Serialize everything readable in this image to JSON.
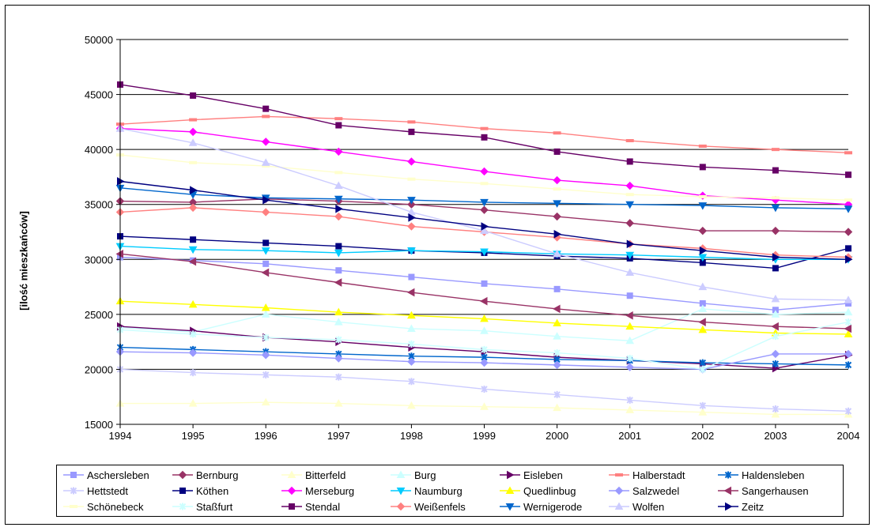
{
  "chart_data": {
    "type": "line",
    "title": "",
    "xlabel": "",
    "ylabel": "[ilość mieszkańców]",
    "ylim": [
      15000,
      50000
    ],
    "yticks": [
      "15000",
      "20000",
      "25000",
      "30000",
      "35000",
      "40000",
      "45000",
      "50000"
    ],
    "x": [
      "1994",
      "1995",
      "1996",
      "1997",
      "1998",
      "1999",
      "2000",
      "2001",
      "2002",
      "2003",
      "2004"
    ],
    "grid": "horizontal",
    "legend": "bottom",
    "series": [
      {
        "name": "Aschersleben",
        "color": "#9999FF",
        "marker": "square",
        "values": [
          30200,
          29900,
          29600,
          29000,
          28400,
          27800,
          27300,
          26700,
          26000,
          25400,
          26000
        ]
      },
      {
        "name": "Bernburg",
        "color": "#993366",
        "marker": "diamond",
        "values": [
          35300,
          35200,
          35500,
          35300,
          35000,
          34500,
          33900,
          33300,
          32600,
          32600,
          32500
        ]
      },
      {
        "name": "Bitterfeld",
        "color": "#FFFFCC",
        "marker": "triangle",
        "values": [
          16900,
          16900,
          17000,
          16900,
          16700,
          16600,
          16500,
          16300,
          16100,
          15900,
          15900
        ]
      },
      {
        "name": "Burg",
        "color": "#CCFFFF",
        "marker": "triangle",
        "values": [
          23800,
          23400,
          25000,
          24300,
          23700,
          23500,
          23000,
          22600,
          25500,
          25000,
          25200
        ]
      },
      {
        "name": "Eisleben",
        "color": "#660066",
        "marker": "triangle-right",
        "values": [
          23900,
          23500,
          22900,
          22500,
          22000,
          21600,
          21100,
          20800,
          20500,
          20100,
          21300
        ]
      },
      {
        "name": "Halberstadt",
        "color": "#FF8080",
        "marker": "dash",
        "values": [
          42300,
          42700,
          43000,
          42800,
          42500,
          41900,
          41500,
          40800,
          40300,
          40000,
          39700
        ]
      },
      {
        "name": "Haldensleben",
        "color": "#0066CC",
        "marker": "star",
        "values": [
          22000,
          21800,
          21600,
          21400,
          21200,
          21100,
          20900,
          20800,
          20600,
          20500,
          20400
        ]
      },
      {
        "name": "Hettstedt",
        "color": "#CCCCFF",
        "marker": "star",
        "values": [
          20000,
          19700,
          19500,
          19300,
          18900,
          18200,
          17700,
          17200,
          16700,
          16400,
          16200
        ]
      },
      {
        "name": "Köthen",
        "color": "#000080",
        "marker": "square",
        "values": [
          32100,
          31800,
          31500,
          31200,
          30800,
          30600,
          30300,
          30100,
          29700,
          29200,
          31000
        ]
      },
      {
        "name": "Merseburg",
        "color": "#FF00FF",
        "marker": "diamond",
        "values": [
          41900,
          41600,
          40700,
          39800,
          38900,
          38000,
          37200,
          36700,
          35800,
          35400,
          35000
        ]
      },
      {
        "name": "Naumburg",
        "color": "#00CCFF",
        "marker": "triangle-down",
        "values": [
          31200,
          30900,
          30800,
          30600,
          30800,
          30700,
          30500,
          30400,
          30200,
          30000,
          30000
        ]
      },
      {
        "name": "Quedlinbug",
        "color": "#FFFF00",
        "marker": "triangle",
        "values": [
          26200,
          25900,
          25600,
          25200,
          24900,
          24600,
          24200,
          23900,
          23600,
          23300,
          23200
        ]
      },
      {
        "name": "Salzwedel",
        "color": "#9999FF",
        "marker": "diamond",
        "values": [
          21600,
          21500,
          21300,
          21000,
          20700,
          20600,
          20400,
          20200,
          20000,
          21400,
          21400
        ]
      },
      {
        "name": "Sangerhausen",
        "color": "#993366",
        "marker": "triangle-left",
        "values": [
          30500,
          29800,
          28800,
          27900,
          27000,
          26200,
          25500,
          24900,
          24300,
          23900,
          23700
        ]
      },
      {
        "name": "Schönebeck",
        "color": "#FFFFCC",
        "marker": "dash",
        "values": [
          39500,
          38800,
          38500,
          37900,
          37300,
          36900,
          36400,
          35900,
          35700,
          35600,
          35400
        ]
      },
      {
        "name": "Staßfurt",
        "color": "#CCFFFF",
        "marker": "star",
        "values": [
          23600,
          23200,
          22900,
          22700,
          22300,
          21800,
          21500,
          21000,
          20000,
          23000,
          24300
        ]
      },
      {
        "name": "Stendal",
        "color": "#660066",
        "marker": "square",
        "values": [
          45900,
          44900,
          43700,
          42200,
          41600,
          41100,
          39800,
          38900,
          38400,
          38100,
          37700
        ]
      },
      {
        "name": "Weißenfels",
        "color": "#FF8080",
        "marker": "diamond",
        "values": [
          34300,
          34700,
          34300,
          33900,
          33000,
          32500,
          32000,
          31400,
          31000,
          30400,
          30200
        ]
      },
      {
        "name": "Wernigerode",
        "color": "#0066CC",
        "marker": "triangle-down",
        "values": [
          36500,
          35900,
          35600,
          35500,
          35400,
          35200,
          35100,
          35000,
          34900,
          34700,
          34600
        ]
      },
      {
        "name": "Wolfen",
        "color": "#CCCCFF",
        "marker": "triangle",
        "values": [
          41900,
          40600,
          38800,
          36700,
          34300,
          32600,
          30500,
          28800,
          27500,
          26400,
          26300
        ]
      },
      {
        "name": "Zeitz",
        "color": "#000080",
        "marker": "triangle-right",
        "values": [
          37100,
          36300,
          35400,
          34600,
          33800,
          33000,
          32300,
          31400,
          30800,
          30200,
          30000
        ]
      }
    ]
  }
}
